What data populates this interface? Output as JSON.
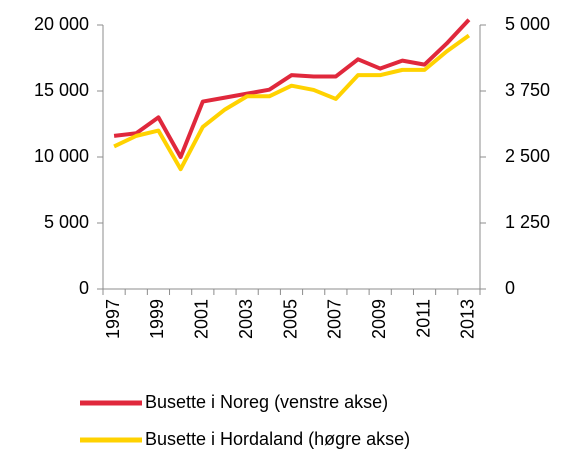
{
  "chart_data": {
    "type": "line",
    "categories": [
      "1997",
      null,
      "1999",
      null,
      "2001",
      null,
      "2003",
      null,
      "2005",
      null,
      "2007",
      null,
      "2009",
      null,
      "2011",
      null,
      "2013"
    ],
    "series": [
      {
        "name": "Busette i Noreg (venstre akse)",
        "color": "#e0283c",
        "values": [
          11600,
          11800,
          13000,
          10000,
          14200,
          14500,
          14800,
          15100,
          16200,
          16100,
          16100,
          17400,
          16700,
          17300,
          17000,
          18600,
          20400
        ]
      },
      {
        "name": "Busette i Hordaland (høgre akse)",
        "color": "#ffd200",
        "axis": "y2",
        "values": [
          2700,
          2900,
          3000,
          2270,
          3070,
          3400,
          3650,
          3650,
          3850,
          3770,
          3600,
          4050,
          4050,
          4150,
          4150,
          4500,
          4800
        ]
      }
    ],
    "ylim": [
      0,
      20000
    ],
    "yticks": [
      0,
      {
        "value": 5000,
        "label": "5 000"
      },
      {
        "value": 10000,
        "label": "10 000"
      },
      {
        "value": 15000,
        "label": "15 000"
      },
      {
        "value": 20000,
        "label": "20 000"
      }
    ],
    "y2lim": [
      0,
      5000
    ],
    "y2ticks": [
      0,
      {
        "value": 1250,
        "label": "1 250"
      },
      {
        "value": 2500,
        "label": "2 500"
      },
      {
        "value": 3750,
        "label": "3 750"
      },
      {
        "value": 5000,
        "label": "5 000"
      }
    ],
    "grid": false
  }
}
